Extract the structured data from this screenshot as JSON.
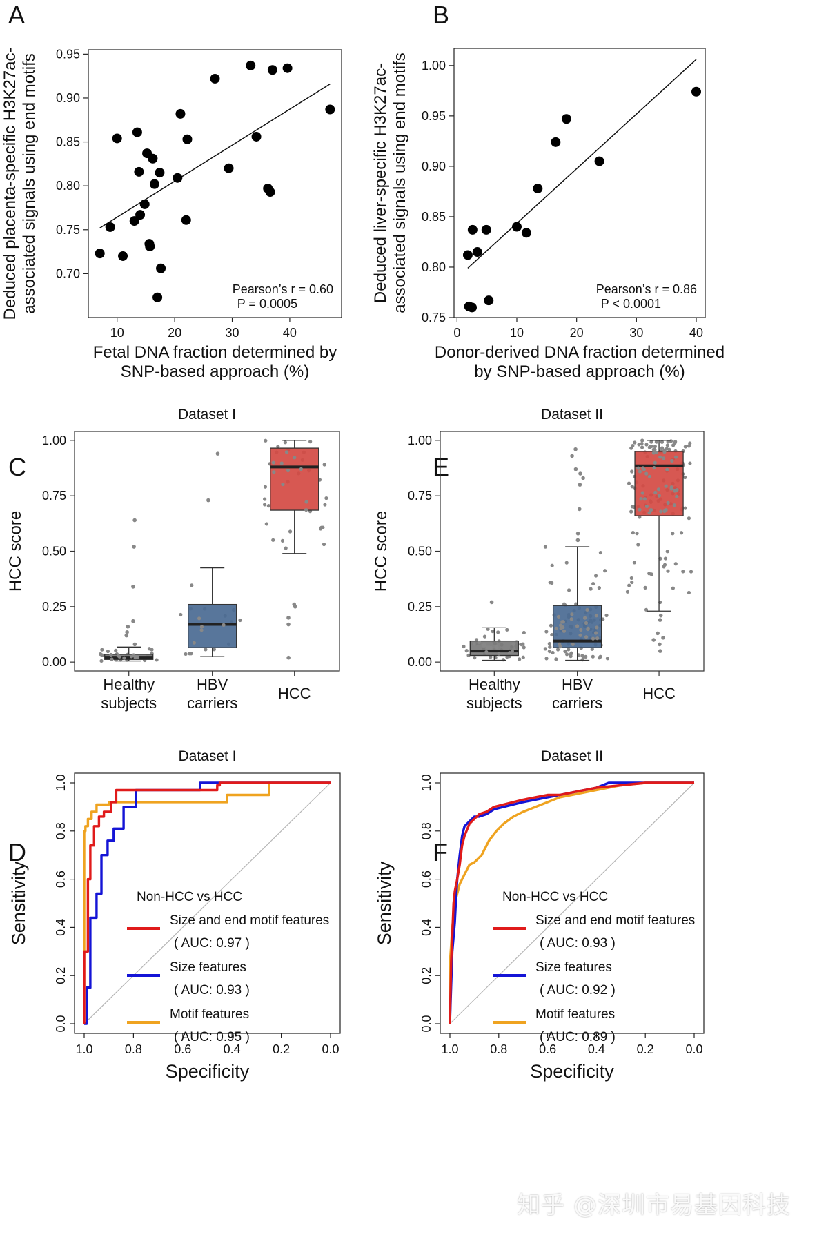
{
  "panels": {
    "A": {
      "letter": "A"
    },
    "B": {
      "letter": "B"
    },
    "C": {
      "letter": "C"
    },
    "D": {
      "letter": "D"
    },
    "E": {
      "letter": "E"
    },
    "F": {
      "letter": "F"
    }
  },
  "watermark": "知乎 @深圳市易基因科技",
  "chart_data": [
    {
      "panel": "A",
      "type": "scatter",
      "xlabel": [
        "Fetal DNA fraction determined by",
        "SNP-based approach (%)"
      ],
      "ylabel": [
        "Deduced placenta-specific H3K27ac-",
        "associated signals using end motifs"
      ],
      "xlim": [
        5,
        49
      ],
      "ylim": [
        0.65,
        0.955
      ],
      "xticks": [
        10,
        20,
        30,
        40
      ],
      "yticks": [
        0.7,
        0.75,
        0.8,
        0.85,
        0.9,
        0.95
      ],
      "ytick_labels": [
        "0.70",
        "0.75",
        "0.80",
        "0.85",
        "0.90",
        "0.95"
      ],
      "annotation": {
        "line1": "Pearson’s r = 0.60",
        "line2": "P = 0.0005"
      },
      "fit_line": {
        "x": [
          7.0,
          47.0
        ],
        "y": [
          0.752,
          0.916
        ]
      },
      "points": [
        [
          7.0,
          0.723
        ],
        [
          8.8,
          0.753
        ],
        [
          10.0,
          0.854
        ],
        [
          11.0,
          0.72
        ],
        [
          13.0,
          0.76
        ],
        [
          13.5,
          0.861
        ],
        [
          13.8,
          0.816
        ],
        [
          14.0,
          0.767
        ],
        [
          14.8,
          0.779
        ],
        [
          15.2,
          0.837
        ],
        [
          15.6,
          0.734
        ],
        [
          15.7,
          0.731
        ],
        [
          16.2,
          0.831
        ],
        [
          16.5,
          0.802
        ],
        [
          17.0,
          0.673
        ],
        [
          17.4,
          0.815
        ],
        [
          17.6,
          0.706
        ],
        [
          20.5,
          0.809
        ],
        [
          21.0,
          0.882
        ],
        [
          22.0,
          0.761
        ],
        [
          22.2,
          0.853
        ],
        [
          27.0,
          0.922
        ],
        [
          29.4,
          0.82
        ],
        [
          33.2,
          0.937
        ],
        [
          34.2,
          0.856
        ],
        [
          36.2,
          0.797
        ],
        [
          36.6,
          0.793
        ],
        [
          37.0,
          0.932
        ],
        [
          39.6,
          0.934
        ],
        [
          47.0,
          0.887
        ]
      ]
    },
    {
      "panel": "B",
      "type": "scatter",
      "xlabel": [
        "Donor-derived DNA fraction determined",
        "by SNP-based approach (%)"
      ],
      "ylabel": [
        "Deduced liver-specific H3K27ac-",
        "associated signals using end motifs"
      ],
      "xlim": [
        -0.5,
        41.5
      ],
      "ylim": [
        0.75,
        1.017
      ],
      "xticks": [
        0,
        10,
        20,
        30,
        40
      ],
      "yticks": [
        0.75,
        0.8,
        0.85,
        0.9,
        0.95,
        1.0
      ],
      "ytick_labels": [
        "0.75",
        "0.80",
        "0.85",
        "0.90",
        "0.95",
        "1.00"
      ],
      "annotation": {
        "line1": "Pearson’s r = 0.86",
        "line2": "P < 0.0001"
      },
      "fit_line": {
        "x": [
          1.8,
          40.0
        ],
        "y": [
          0.799,
          1.006
        ]
      },
      "points": [
        [
          1.8,
          0.812
        ],
        [
          2.0,
          0.761
        ],
        [
          2.5,
          0.76
        ],
        [
          2.6,
          0.837
        ],
        [
          3.4,
          0.815
        ],
        [
          4.9,
          0.837
        ],
        [
          5.3,
          0.767
        ],
        [
          10.0,
          0.84
        ],
        [
          11.6,
          0.834
        ],
        [
          13.5,
          0.878
        ],
        [
          16.5,
          0.924
        ],
        [
          18.3,
          0.947
        ],
        [
          23.8,
          0.905
        ],
        [
          40.0,
          0.974
        ]
      ]
    },
    {
      "panel": "C",
      "type": "box",
      "title": "Dataset I",
      "ylabel": "HCC score",
      "ylim": [
        -0.04,
        1.04
      ],
      "yticks": [
        0.0,
        0.25,
        0.5,
        0.75,
        1.0
      ],
      "ytick_labels": [
        "0.00",
        "0.25",
        "0.50",
        "0.75",
        "1.00"
      ],
      "categories": [
        [
          "Healthy",
          "subjects"
        ],
        [
          "HBV",
          "carriers"
        ],
        [
          "HCC"
        ]
      ],
      "colors": [
        "#7a7a7a",
        "#4a6a93",
        "#d44a43"
      ],
      "boxes": [
        {
          "q1": 0.012,
          "median": 0.022,
          "q3": 0.035,
          "whisker_low": 0.005,
          "whisker_high": 0.068
        },
        {
          "q1": 0.065,
          "median": 0.17,
          "q3": 0.26,
          "whisker_low": 0.025,
          "whisker_high": 0.425
        },
        {
          "q1": 0.685,
          "median": 0.88,
          "q3": 0.965,
          "whisker_low": 0.49,
          "whisker_high": 1.0
        }
      ],
      "outliers": [
        [
          0.64,
          0.52,
          0.34,
          0.185,
          0.16,
          0.135,
          0.12,
          0.08
        ],
        [
          0.94,
          0.73
        ],
        [
          0.26,
          0.25,
          0.2,
          0.17,
          0.02
        ]
      ]
    },
    {
      "panel": "E",
      "type": "box",
      "title": "Dataset II",
      "ylabel": "HCC score",
      "ylim": [
        -0.04,
        1.04
      ],
      "yticks": [
        0.0,
        0.25,
        0.5,
        0.75,
        1.0
      ],
      "ytick_labels": [
        "0.00",
        "0.25",
        "0.50",
        "0.75",
        "1.00"
      ],
      "categories": [
        [
          "Healthy",
          "subjects"
        ],
        [
          "HBV",
          "carriers"
        ],
        [
          "HCC"
        ]
      ],
      "colors": [
        "#7a7a7a",
        "#4a6a93",
        "#d44a43"
      ],
      "boxes": [
        {
          "q1": 0.03,
          "median": 0.05,
          "q3": 0.095,
          "whisker_low": 0.008,
          "whisker_high": 0.155
        },
        {
          "q1": 0.065,
          "median": 0.095,
          "q3": 0.255,
          "whisker_low": 0.008,
          "whisker_high": 0.52
        },
        {
          "q1": 0.66,
          "median": 0.885,
          "q3": 0.95,
          "whisker_low": 0.23,
          "whisker_high": 1.0
        }
      ],
      "outliers": [
        [
          0.27
        ],
        [
          0.96,
          0.93,
          0.87,
          0.85,
          0.83,
          0.8,
          0.69,
          0.58,
          0.55
        ],
        [
          0.21,
          0.19,
          0.13,
          0.11,
          0.1,
          0.08,
          0.05
        ]
      ]
    },
    {
      "panel": "D",
      "type": "line",
      "title": "Dataset I",
      "xlabel": "Specificity",
      "ylabel": "Sensitivity",
      "xlim": [
        1.0,
        0.0
      ],
      "ylim": [
        0.0,
        1.0
      ],
      "xticks": [
        1.0,
        0.8,
        0.6,
        0.4,
        0.2,
        0.0
      ],
      "xtick_labels": [
        "1.0",
        "0.8",
        "0.6",
        "0.4",
        "0.2",
        "0.0"
      ],
      "yticks": [
        0.0,
        0.2,
        0.4,
        0.6,
        0.8,
        1.0
      ],
      "ytick_labels": [
        "0.0",
        "0.2",
        "0.4",
        "0.6",
        "0.8",
        "1.0"
      ],
      "legend_title": "Non-HCC vs HCC",
      "series": [
        {
          "name": "Size and end motif features",
          "auc": "( AUC: 0.97 )",
          "color": "#e01b1b",
          "spec": [
            1.0,
            1.0,
            0.985,
            0.985,
            0.975,
            0.975,
            0.96,
            0.96,
            0.94,
            0.94,
            0.92,
            0.92,
            0.89,
            0.89,
            0.87,
            0.87,
            0.79,
            0.79,
            0.46,
            0.46,
            0.45,
            0.45,
            0.25,
            0.0
          ],
          "sens": [
            0.0,
            0.3,
            0.3,
            0.6,
            0.6,
            0.74,
            0.74,
            0.82,
            0.82,
            0.86,
            0.86,
            0.88,
            0.88,
            0.92,
            0.92,
            0.97,
            0.97,
            0.97,
            0.97,
            0.99,
            0.99,
            1.0,
            1.0,
            1.0
          ]
        },
        {
          "name": "Size features",
          "auc": "( AUC: 0.93 )",
          "color": "#1414d6",
          "spec": [
            1.0,
            0.99,
            0.99,
            0.975,
            0.975,
            0.95,
            0.95,
            0.93,
            0.93,
            0.905,
            0.905,
            0.88,
            0.88,
            0.84,
            0.84,
            0.79,
            0.79,
            0.53,
            0.53,
            0.25,
            0.0
          ],
          "sens": [
            0.0,
            0.0,
            0.15,
            0.15,
            0.44,
            0.44,
            0.54,
            0.54,
            0.7,
            0.7,
            0.76,
            0.76,
            0.81,
            0.81,
            0.9,
            0.9,
            0.97,
            0.97,
            1.0,
            1.0,
            1.0
          ]
        },
        {
          "name": "Motif features",
          "auc": "( AUC: 0.95 )",
          "color": "#efa320",
          "spec": [
            1.0,
            1.0,
            0.995,
            0.995,
            0.985,
            0.985,
            0.97,
            0.97,
            0.95,
            0.95,
            0.9,
            0.9,
            0.42,
            0.42,
            0.25,
            0.25,
            0.0
          ],
          "sens": [
            0.0,
            0.8,
            0.8,
            0.82,
            0.82,
            0.85,
            0.85,
            0.88,
            0.88,
            0.91,
            0.91,
            0.92,
            0.92,
            0.95,
            0.95,
            1.0,
            1.0
          ]
        }
      ]
    },
    {
      "panel": "F",
      "type": "line",
      "title": "Dataset II",
      "xlabel": "Specificity",
      "ylabel": "Sensitivity",
      "xlim": [
        1.0,
        0.0
      ],
      "ylim": [
        0.0,
        1.0
      ],
      "xticks": [
        1.0,
        0.8,
        0.6,
        0.4,
        0.2,
        0.0
      ],
      "xtick_labels": [
        "1.0",
        "0.8",
        "0.6",
        "0.4",
        "0.2",
        "0.0"
      ],
      "yticks": [
        0.0,
        0.2,
        0.4,
        0.6,
        0.8,
        1.0
      ],
      "ytick_labels": [
        "0.0",
        "0.2",
        "0.4",
        "0.6",
        "0.8",
        "1.0"
      ],
      "legend_title": "Non-HCC vs HCC",
      "series": [
        {
          "name": "Size and end motif features",
          "auc": "( AUC: 0.93 )",
          "color": "#e01b1b",
          "spec": [
            1.0,
            0.995,
            0.99,
            0.985,
            0.98,
            0.97,
            0.96,
            0.95,
            0.94,
            0.92,
            0.9,
            0.88,
            0.85,
            0.82,
            0.78,
            0.74,
            0.7,
            0.65,
            0.6,
            0.55,
            0.5,
            0.4,
            0.3,
            0.2,
            0.0
          ],
          "sens": [
            0.0,
            0.26,
            0.37,
            0.5,
            0.55,
            0.6,
            0.66,
            0.74,
            0.78,
            0.83,
            0.85,
            0.87,
            0.88,
            0.9,
            0.91,
            0.92,
            0.93,
            0.94,
            0.95,
            0.95,
            0.96,
            0.98,
            0.99,
            1.0,
            1.0
          ]
        },
        {
          "name": "Size features",
          "auc": "( AUC: 0.92 )",
          "color": "#1414d6",
          "spec": [
            1.0,
            0.995,
            0.99,
            0.98,
            0.975,
            0.97,
            0.96,
            0.95,
            0.94,
            0.92,
            0.9,
            0.88,
            0.85,
            0.82,
            0.78,
            0.74,
            0.7,
            0.65,
            0.6,
            0.55,
            0.5,
            0.4,
            0.35,
            0.2,
            0.0
          ],
          "sens": [
            0.0,
            0.16,
            0.3,
            0.42,
            0.52,
            0.6,
            0.7,
            0.78,
            0.82,
            0.84,
            0.86,
            0.86,
            0.87,
            0.89,
            0.9,
            0.91,
            0.92,
            0.93,
            0.94,
            0.95,
            0.96,
            0.98,
            1.0,
            1.0,
            1.0
          ]
        },
        {
          "name": "Motif features",
          "auc": "( AUC: 0.89 )",
          "color": "#efa320",
          "spec": [
            1.0,
            1.0,
            0.99,
            0.98,
            0.96,
            0.94,
            0.92,
            0.9,
            0.87,
            0.84,
            0.81,
            0.78,
            0.74,
            0.7,
            0.65,
            0.6,
            0.55,
            0.5,
            0.4,
            0.3,
            0.2,
            0.1,
            0.0
          ],
          "sens": [
            0.0,
            0.25,
            0.4,
            0.5,
            0.58,
            0.62,
            0.66,
            0.67,
            0.7,
            0.76,
            0.8,
            0.83,
            0.86,
            0.88,
            0.9,
            0.92,
            0.94,
            0.95,
            0.97,
            0.99,
            1.0,
            1.0,
            1.0
          ]
        }
      ]
    }
  ]
}
